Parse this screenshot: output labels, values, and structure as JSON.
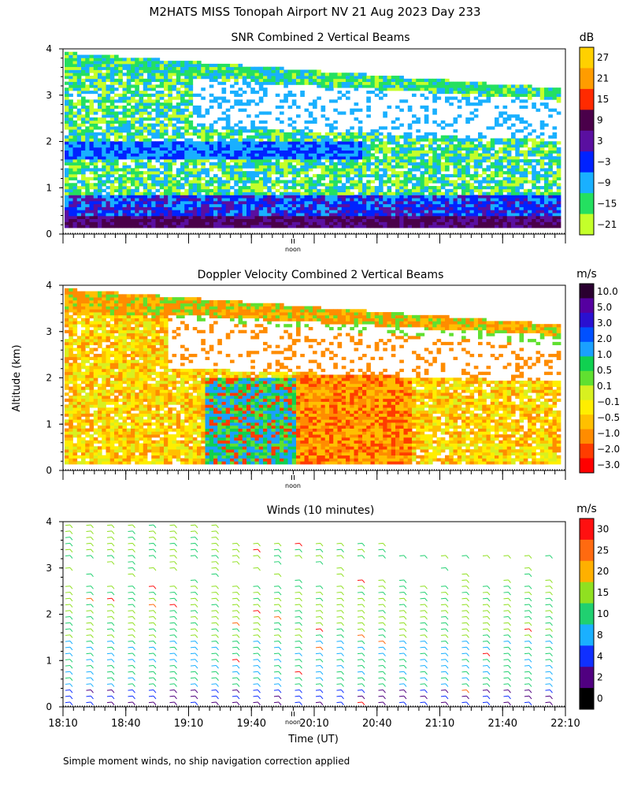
{
  "page_title": "M2HATS MISS Tonopah Airport NV  21 Aug 2023 Day 233",
  "ylabel": "Altitude (km)",
  "footer_note": "Simple moment winds, no ship navigation correction applied",
  "chart_data": [
    {
      "type": "heatmap",
      "title": "SNR Combined 2 Vertical Beams",
      "ylim": [
        0,
        4
      ],
      "y_ticks": [
        0,
        1,
        2,
        3,
        4
      ],
      "xlim": [
        "18:10",
        "22:10"
      ],
      "x_marker_label": "noon",
      "colorbar": {
        "unit": "dB",
        "labels": [
          "27",
          "21",
          "15",
          "9",
          "3",
          "−3",
          "−9",
          "−15",
          "−21"
        ],
        "colors": [
          "#ffd000",
          "#ff9c00",
          "#ff2a00",
          "#4a004a",
          "#5a0fa0",
          "#0022ff",
          "#19b0ff",
          "#24e060",
          "#c4ff2a"
        ]
      }
    },
    {
      "type": "heatmap",
      "title": "Doppler Velocity Combined 2 Vertical Beams",
      "ylim": [
        0,
        4
      ],
      "y_ticks": [
        0,
        1,
        2,
        3,
        4
      ],
      "xlim": [
        "18:10",
        "22:10"
      ],
      "x_marker_label": "noon",
      "colorbar": {
        "unit": "m/s",
        "labels": [
          "10.0",
          "5.0",
          "3.0",
          "2.0",
          "1.0",
          "0.5",
          "0.1",
          "−0.1",
          "−0.5",
          "−1.0",
          "−2.0",
          "−3.0"
        ],
        "colors": [
          "#2a0030",
          "#5500a0",
          "#2a10d0",
          "#0050ff",
          "#1aa0ff",
          "#10d050",
          "#60e030",
          "#d8f020",
          "#ffee00",
          "#ffc000",
          "#ff8c00",
          "#ff3c00",
          "#ff0000"
        ]
      }
    },
    {
      "type": "scatter",
      "title": "Winds (10 minutes)",
      "ylim": [
        0,
        4
      ],
      "y_ticks": [
        0,
        1,
        2,
        3,
        4
      ],
      "xlabel": "Time (UT)",
      "x_ticks": [
        "18:10",
        "18:40",
        "19:10",
        "19:40",
        "20:10",
        "20:40",
        "21:10",
        "21:40",
        "22:10"
      ],
      "x_marker_label": "noon",
      "colorbar": {
        "unit": "m/s",
        "labels": [
          "30",
          "25",
          "20",
          "15",
          "10",
          "8",
          "4",
          "2",
          "0"
        ],
        "colors": [
          "#ff1010",
          "#ff6a10",
          "#ffb000",
          "#90e020",
          "#20d070",
          "#1ab0ff",
          "#1030ff",
          "#500080",
          "#000000"
        ]
      }
    }
  ]
}
